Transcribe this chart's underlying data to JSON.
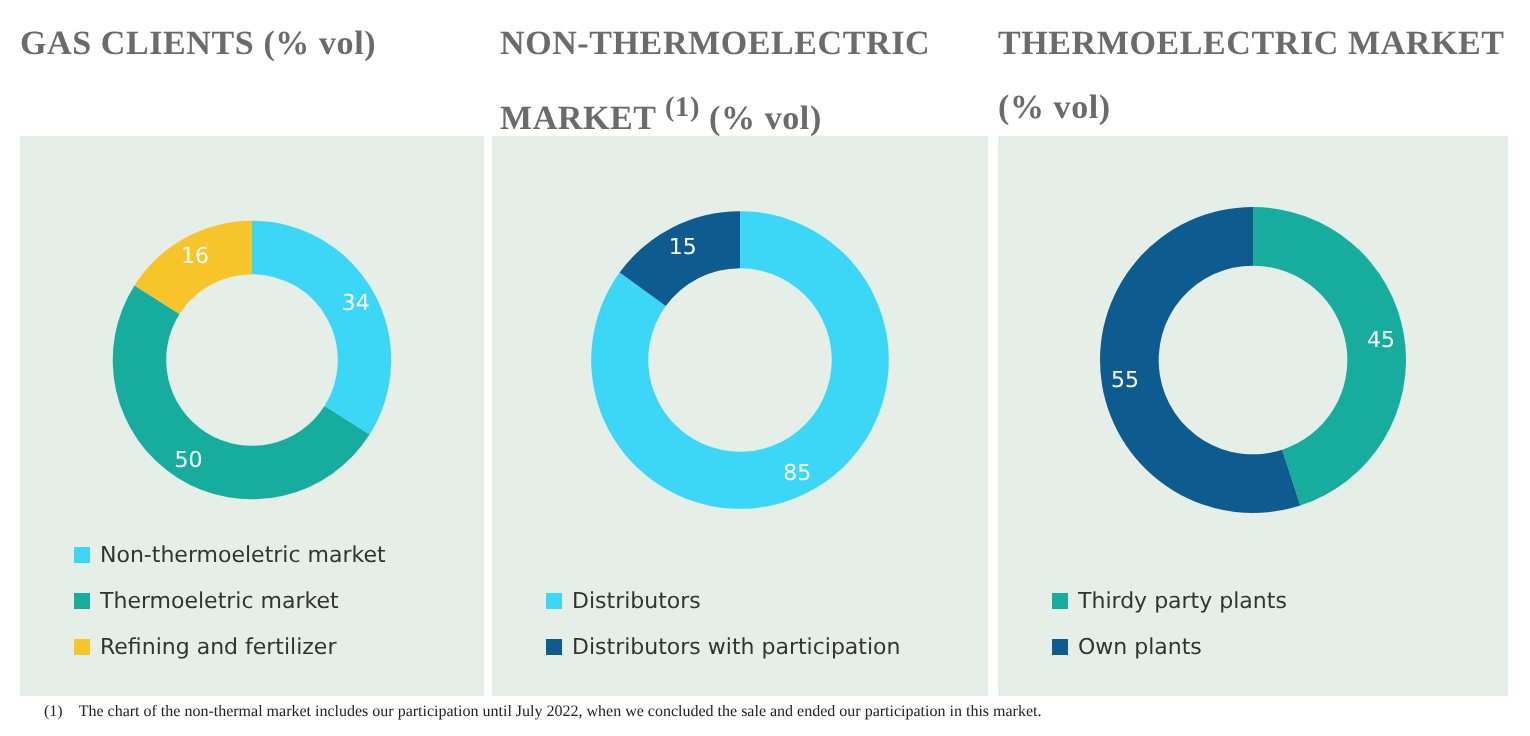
{
  "chart_data": [
    {
      "type": "donut",
      "title": "GAS CLIENTS (% vol)",
      "categories": [
        "Non-thermoeletric market",
        "Thermoeletric market",
        "Refining and fertilizer"
      ],
      "values": [
        34,
        50,
        16
      ],
      "colors": [
        "#3cd7f7",
        "#17ad9e",
        "#f7c52a"
      ],
      "data_labels": true,
      "legend": "bottom left"
    },
    {
      "type": "donut",
      "title": "NON-THERMOELECTRIC MARKET $^{(1)}$ (% vol)",
      "categories": [
        "Distributors",
        "Distributors with participation"
      ],
      "values": [
        85,
        15
      ],
      "colors": [
        "#3cd7f7",
        "#0d5b8f"
      ],
      "data_labels": true,
      "legend": "bottom left",
      "annotations": [
        "(1) The chart of the non-thermal market includes our participation until July 2022, when we concluded the sale and ended our participation in this market."
      ]
    },
    {
      "type": "donut",
      "title": "THERMOELECTRIC MARKET (% vol)",
      "categories": [
        "Thirdy party plants",
        "Own plants"
      ],
      "values": [
        45,
        55
      ],
      "colors": [
        "#17ad9e",
        "#0d5b8f"
      ],
      "data_labels": true,
      "legend": "bottom left"
    }
  ]
}
